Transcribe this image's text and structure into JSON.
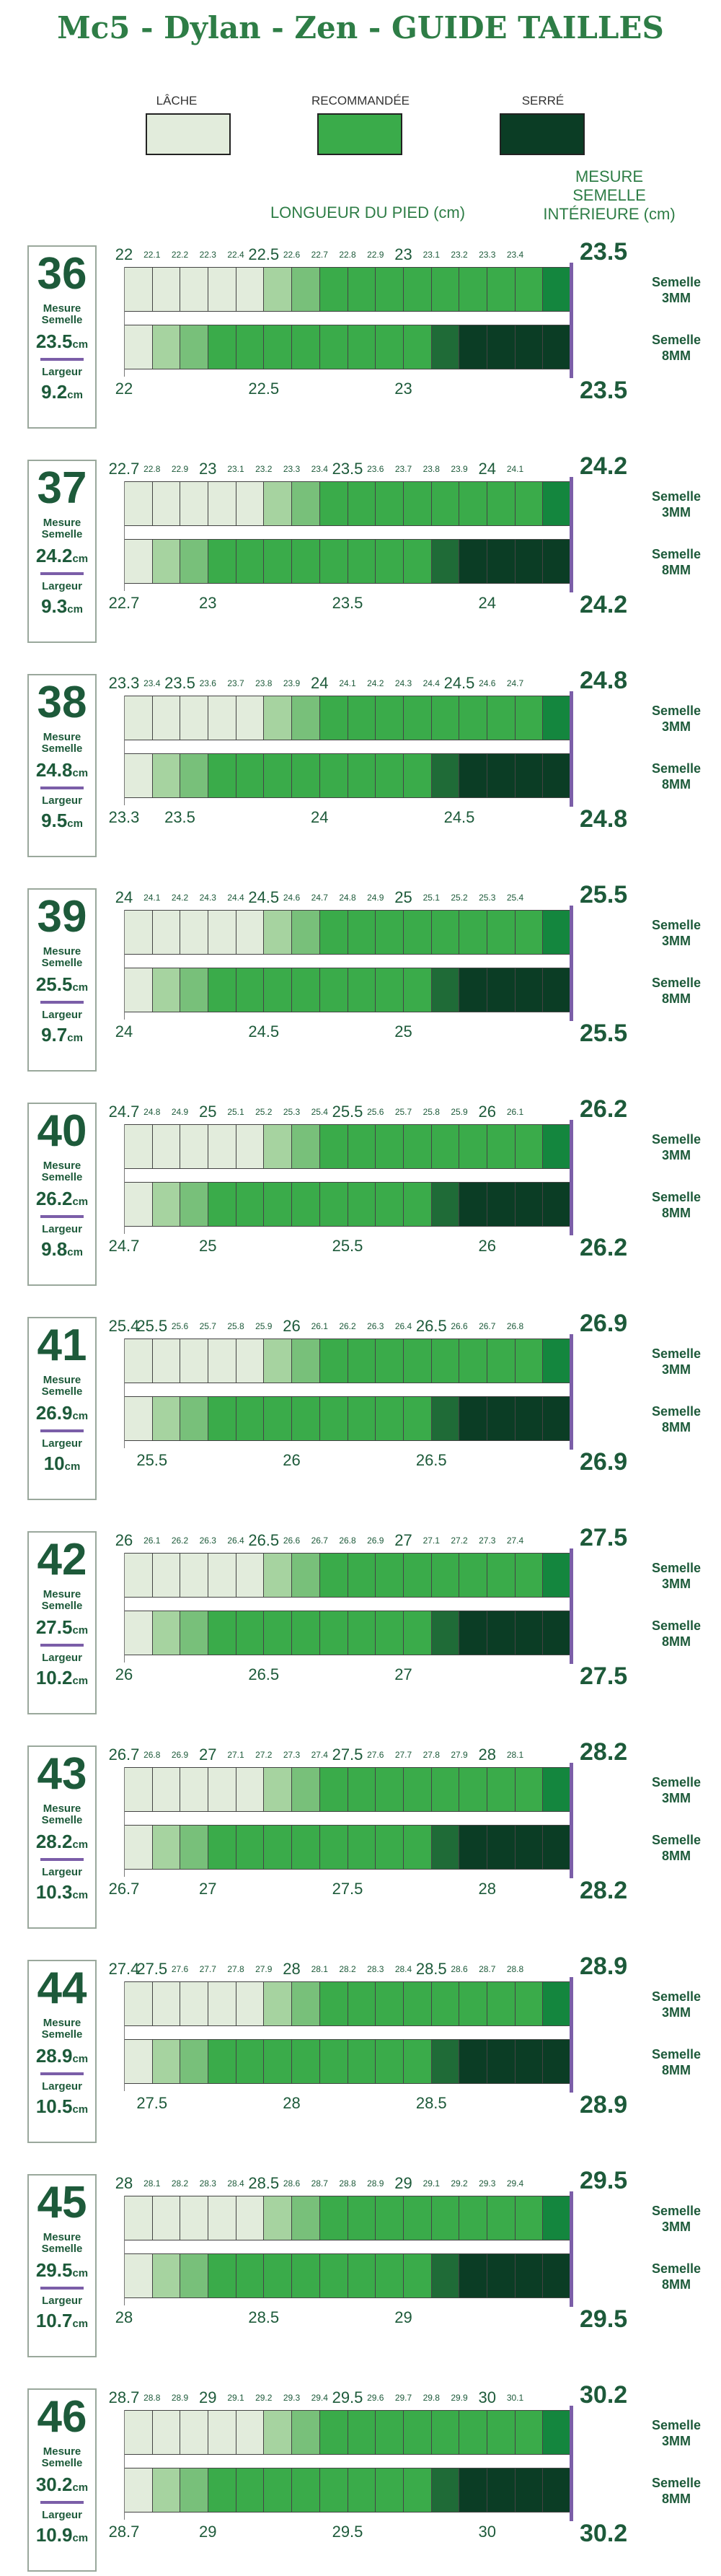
{
  "page": {
    "title": "Mc5 - Dylan - Zen - GUIDE TAILLES",
    "legend": [
      {
        "label": "LÂCHE",
        "color": "#e2ecdc"
      },
      {
        "label": "RECOMMANDÉE",
        "color": "#3aab4a"
      },
      {
        "label": "SERRÉ",
        "color": "#0b3d25"
      }
    ],
    "header_length": "LONGUEUR DU PIED (cm)",
    "header_measure": [
      "MESURE",
      "SEMELLE",
      "INTÉRIEURE (cm)"
    ],
    "box_measure_label": [
      "Mesure",
      "Semelle"
    ],
    "box_width_label": "Largeur",
    "unit": "cm",
    "row_labels": {
      "top": [
        "Semelle",
        "3MM"
      ],
      "bottom": [
        "Semelle",
        "8MM"
      ]
    }
  },
  "chart_data": {
    "type": "table",
    "colors": {
      "loose_1": "#e2ecdc",
      "loose_2": "#a6d3a0",
      "loose_3": "#78c07a",
      "recommended": "#3aab4a",
      "end_3mm": "#14863e",
      "tight_1": "#1f6b37",
      "tight_2": "#0b3d25",
      "divider": "#7b5ea8"
    },
    "sizes": [
      {
        "size": "36",
        "measure": "23.5",
        "width": "9.2",
        "top_ticks": [
          "22",
          "22.1",
          "22.2",
          "22.3",
          "22.4",
          "22.5",
          "22.6",
          "22.7",
          "22.8",
          "22.9",
          "23",
          "23.1",
          "23.2",
          "23.3",
          "23.4"
        ],
        "top_end": "23.5",
        "bottom_ticks": [
          {
            "pos": 0,
            "label": "22"
          },
          {
            "pos": 5,
            "label": "22.5"
          },
          {
            "pos": 10,
            "label": "23"
          }
        ],
        "bottom_end": "23.5"
      },
      {
        "size": "37",
        "measure": "24.2",
        "width": "9.3",
        "top_ticks": [
          "22.7",
          "22.8",
          "22.9",
          "23",
          "23.1",
          "23.2",
          "23.3",
          "23.4",
          "23.5",
          "23.6",
          "23.7",
          "23.8",
          "23.9",
          "24",
          "24.1"
        ],
        "top_end": "24.2",
        "bottom_ticks": [
          {
            "pos": 0,
            "label": "22.7"
          },
          {
            "pos": 3,
            "label": "23"
          },
          {
            "pos": 8,
            "label": "23.5"
          },
          {
            "pos": 13,
            "label": "24"
          }
        ],
        "bottom_end": "24.2"
      },
      {
        "size": "38",
        "measure": "24.8",
        "width": "9.5",
        "top_ticks": [
          "23.3",
          "23.4",
          "23.5",
          "23.6",
          "23.7",
          "23.8",
          "23.9",
          "24",
          "24.1",
          "24.2",
          "24.3",
          "24.4",
          "24.5",
          "24.6",
          "24.7"
        ],
        "top_end": "24.8",
        "bottom_ticks": [
          {
            "pos": 0,
            "label": "23.3"
          },
          {
            "pos": 2,
            "label": "23.5"
          },
          {
            "pos": 7,
            "label": "24"
          },
          {
            "pos": 12,
            "label": "24.5"
          }
        ],
        "bottom_end": "24.8"
      },
      {
        "size": "39",
        "measure": "25.5",
        "width": "9.7",
        "top_ticks": [
          "24",
          "24.1",
          "24.2",
          "24.3",
          "24.4",
          "24.5",
          "24.6",
          "24.7",
          "24.8",
          "24.9",
          "25",
          "25.1",
          "25.2",
          "25.3",
          "25.4"
        ],
        "top_end": "25.5",
        "bottom_ticks": [
          {
            "pos": 0,
            "label": "24"
          },
          {
            "pos": 5,
            "label": "24.5"
          },
          {
            "pos": 10,
            "label": "25"
          }
        ],
        "bottom_end": "25.5"
      },
      {
        "size": "40",
        "measure": "26.2",
        "width": "9.8",
        "top_ticks": [
          "24.7",
          "24.8",
          "24.9",
          "25",
          "25.1",
          "25.2",
          "25.3",
          "25.4",
          "25.5",
          "25.6",
          "25.7",
          "25.8",
          "25.9",
          "26",
          "26.1"
        ],
        "top_end": "26.2",
        "bottom_ticks": [
          {
            "pos": 0,
            "label": "24.7"
          },
          {
            "pos": 3,
            "label": "25"
          },
          {
            "pos": 8,
            "label": "25.5"
          },
          {
            "pos": 13,
            "label": "26"
          }
        ],
        "bottom_end": "26.2"
      },
      {
        "size": "41",
        "measure": "26.9",
        "width": "10",
        "top_ticks": [
          "25.4",
          "25.5",
          "25.6",
          "25.7",
          "25.8",
          "25.9",
          "26",
          "26.1",
          "26.2",
          "26.3",
          "26.4",
          "26.5",
          "26.6",
          "26.7",
          "26.8"
        ],
        "top_end": "26.9",
        "bottom_ticks": [
          {
            "pos": 1,
            "label": "25.5"
          },
          {
            "pos": 6,
            "label": "26"
          },
          {
            "pos": 11,
            "label": "26.5"
          }
        ],
        "bottom_end": "26.9"
      },
      {
        "size": "42",
        "measure": "27.5",
        "width": "10.2",
        "top_ticks": [
          "26",
          "26.1",
          "26.2",
          "26.3",
          "26.4",
          "26.5",
          "26.6",
          "26.7",
          "26.8",
          "26.9",
          "27",
          "27.1",
          "27.2",
          "27.3",
          "27.4"
        ],
        "top_end": "27.5",
        "bottom_ticks": [
          {
            "pos": 0,
            "label": "26"
          },
          {
            "pos": 5,
            "label": "26.5"
          },
          {
            "pos": 10,
            "label": "27"
          }
        ],
        "bottom_end": "27.5"
      },
      {
        "size": "43",
        "measure": "28.2",
        "width": "10.3",
        "top_ticks": [
          "26.7",
          "26.8",
          "26.9",
          "27",
          "27.1",
          "27.2",
          "27.3",
          "27.4",
          "27.5",
          "27.6",
          "27.7",
          "27.8",
          "27.9",
          "28",
          "28.1"
        ],
        "top_end": "28.2",
        "bottom_ticks": [
          {
            "pos": 0,
            "label": "26.7"
          },
          {
            "pos": 3,
            "label": "27"
          },
          {
            "pos": 8,
            "label": "27.5"
          },
          {
            "pos": 13,
            "label": "28"
          }
        ],
        "bottom_end": "28.2"
      },
      {
        "size": "44",
        "measure": "28.9",
        "width": "10.5",
        "top_ticks": [
          "27.4",
          "27.5",
          "27.6",
          "27.7",
          "27.8",
          "27.9",
          "28",
          "28.1",
          "28.2",
          "28.3",
          "28.4",
          "28.5",
          "28.6",
          "28.7",
          "28.8"
        ],
        "top_end": "28.9",
        "bottom_ticks": [
          {
            "pos": 1,
            "label": "27.5"
          },
          {
            "pos": 6,
            "label": "28"
          },
          {
            "pos": 11,
            "label": "28.5"
          }
        ],
        "bottom_end": "28.9"
      },
      {
        "size": "45",
        "measure": "29.5",
        "width": "10.7",
        "top_ticks": [
          "28",
          "28.1",
          "28.2",
          "28.3",
          "28.4",
          "28.5",
          "28.6",
          "28.7",
          "28.8",
          "28.9",
          "29",
          "29.1",
          "29.2",
          "29.3",
          "29.4"
        ],
        "top_end": "29.5",
        "bottom_ticks": [
          {
            "pos": 0,
            "label": "28"
          },
          {
            "pos": 5,
            "label": "28.5"
          },
          {
            "pos": 10,
            "label": "29"
          }
        ],
        "bottom_end": "29.5"
      },
      {
        "size": "46",
        "measure": "30.2",
        "width": "10.9",
        "top_ticks": [
          "28.7",
          "28.8",
          "28.9",
          "29",
          "29.1",
          "29.2",
          "29.3",
          "29.4",
          "29.5",
          "29.6",
          "29.7",
          "29.8",
          "29.9",
          "30",
          "30.1"
        ],
        "top_end": "30.2",
        "bottom_ticks": [
          {
            "pos": 0,
            "label": "28.7"
          },
          {
            "pos": 3,
            "label": "29"
          },
          {
            "pos": 8,
            "label": "29.5"
          },
          {
            "pos": 13,
            "label": "30"
          }
        ],
        "bottom_end": "30.2"
      }
    ]
  }
}
